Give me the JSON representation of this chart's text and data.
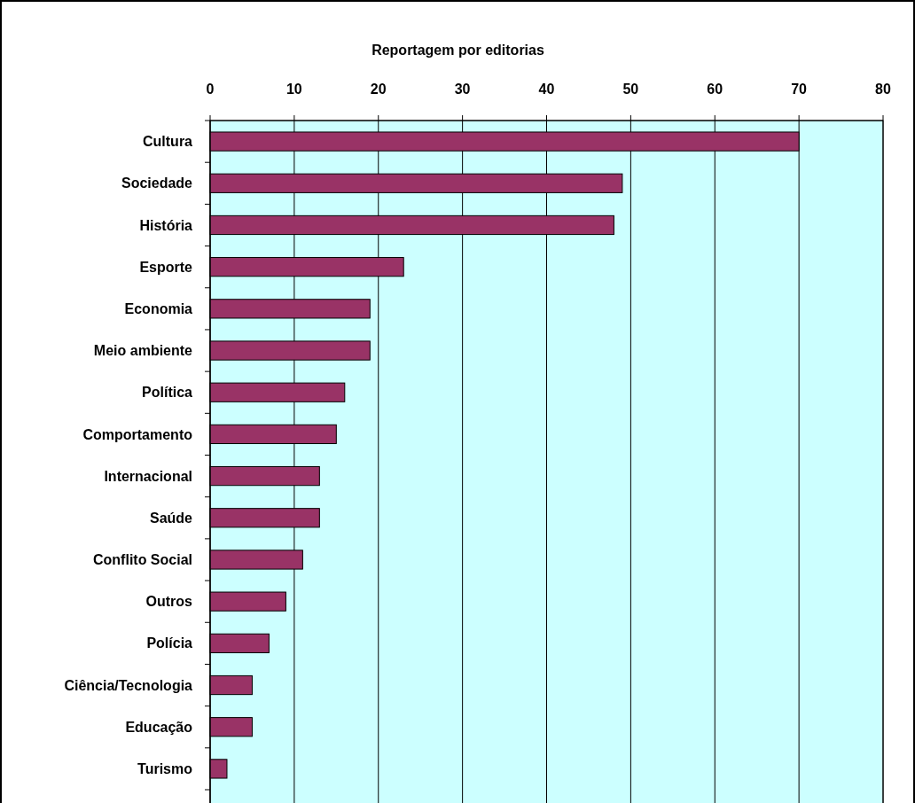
{
  "chart_data": {
    "type": "bar",
    "orientation": "horizontal",
    "title": "Reportagem por editorias",
    "categories": [
      "Cultura",
      "Sociedade",
      "História",
      "Esporte",
      "Economia",
      "Meio ambiente",
      "Política",
      "Comportamento",
      "Internacional",
      "Saúde",
      "Conflito Social",
      "Outros",
      "Polícia",
      "Ciência/Tecnologia",
      "Educação",
      "Turismo"
    ],
    "values": [
      70,
      49,
      48,
      23,
      19,
      19,
      16,
      15,
      13,
      13,
      11,
      9,
      7,
      5,
      5,
      2
    ],
    "color": "#993366",
    "xlim": [
      0,
      80
    ],
    "xticks": [
      0,
      10,
      20,
      30,
      40,
      50,
      60,
      70,
      80
    ],
    "grid": "x"
  }
}
